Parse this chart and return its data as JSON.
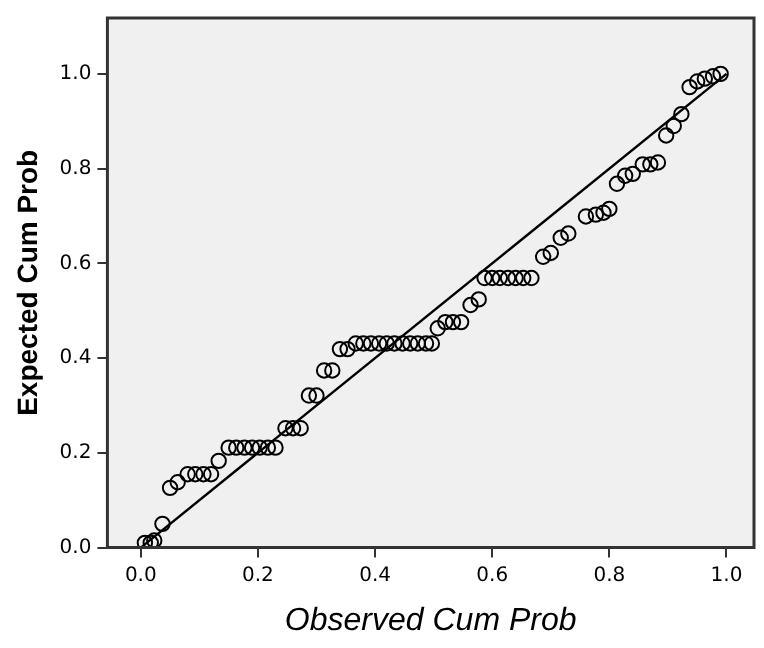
{
  "chart_data": {
    "type": "scatter",
    "xlabel": "Observed Cum Prob",
    "ylabel": "Expected Cum Prob",
    "xlim": [
      -0.057,
      1.047
    ],
    "ylim": [
      0,
      1.118
    ],
    "xticks": [
      {
        "value": 0,
        "label": "0.0"
      },
      {
        "value": 0.2,
        "label": "0.2"
      },
      {
        "value": 0.4,
        "label": "0.4"
      },
      {
        "value": 0.6,
        "label": "0.6"
      },
      {
        "value": 0.8,
        "label": "0.8"
      },
      {
        "value": 1,
        "label": "1.0"
      }
    ],
    "yticks": [
      {
        "value": 0,
        "label": "0.0"
      },
      {
        "value": 0.2,
        "label": "0.2"
      },
      {
        "value": 0.4,
        "label": "0.4"
      },
      {
        "value": 0.6,
        "label": "0.6"
      },
      {
        "value": 0.8,
        "label": "0.8"
      },
      {
        "value": 1,
        "label": "1.0"
      }
    ],
    "grid": false,
    "legend": false,
    "marker": "circle",
    "series": [
      {
        "color": "#000000",
        "x": [
          0.007,
          0.017,
          0.023,
          0.037,
          0.05,
          0.063,
          0.08,
          0.093,
          0.107,
          0.12,
          0.133,
          0.15,
          0.163,
          0.177,
          0.19,
          0.203,
          0.217,
          0.23,
          0.247,
          0.26,
          0.273,
          0.287,
          0.3,
          0.313,
          0.327,
          0.34,
          0.353,
          0.367,
          0.38,
          0.393,
          0.407,
          0.42,
          0.433,
          0.447,
          0.46,
          0.473,
          0.487,
          0.497,
          0.507,
          0.52,
          0.533,
          0.547,
          0.563,
          0.577,
          0.587,
          0.6,
          0.613,
          0.627,
          0.64,
          0.653,
          0.667,
          0.687,
          0.7,
          0.717,
          0.73,
          0.76,
          0.777,
          0.79,
          0.8,
          0.813,
          0.827,
          0.84,
          0.857,
          0.87,
          0.883,
          0.897,
          0.91,
          0.923,
          0.937,
          0.95,
          0.963,
          0.977,
          0.99
        ],
        "values": [
          0.01,
          0.01,
          0.015,
          0.05,
          0.126,
          0.138,
          0.155,
          0.155,
          0.155,
          0.155,
          0.183,
          0.211,
          0.211,
          0.211,
          0.211,
          0.211,
          0.211,
          0.211,
          0.252,
          0.252,
          0.252,
          0.321,
          0.321,
          0.374,
          0.374,
          0.419,
          0.419,
          0.431,
          0.431,
          0.431,
          0.431,
          0.431,
          0.431,
          0.431,
          0.431,
          0.431,
          0.431,
          0.431,
          0.463,
          0.476,
          0.476,
          0.476,
          0.512,
          0.524,
          0.569,
          0.569,
          0.569,
          0.569,
          0.569,
          0.569,
          0.569,
          0.614,
          0.622,
          0.654,
          0.663,
          0.699,
          0.703,
          0.707,
          0.715,
          0.768,
          0.785,
          0.789,
          0.809,
          0.809,
          0.813,
          0.87,
          0.89,
          0.915,
          0.972,
          0.984,
          0.99,
          0.995,
          1.0
        ]
      },
      {
        "type": "line",
        "color": "#000000",
        "marker": "none",
        "x": [
          0,
          1
        ],
        "values": [
          0,
          1
        ]
      }
    ]
  }
}
